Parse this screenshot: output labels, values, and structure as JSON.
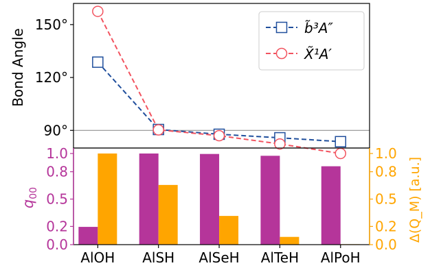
{
  "colors": {
    "series_b3A": "#1f4e9c",
    "series_X1A": "#f2535f",
    "q00_bar": "#b5359a",
    "delta_bar": "#ffa500",
    "axis": "#000000",
    "refline": "#808080"
  },
  "chart_data": [
    {
      "type": "line",
      "ylabel": "Bond Angle",
      "ylim": [
        80,
        162
      ],
      "yticks": [
        90,
        120,
        150
      ],
      "ytick_labels": [
        "90°",
        "120°",
        "150°"
      ],
      "reference_line": 90,
      "categories": [
        "AlOH",
        "AlSH",
        "AlSeH",
        "AlTeH",
        "AlPoH"
      ],
      "series": [
        {
          "name": "b̃³A″",
          "marker": "square",
          "style": "dashed",
          "values": [
            128.7,
            90.5,
            87.8,
            85.8,
            83.6
          ]
        },
        {
          "name": "X̃¹A′",
          "marker": "circle",
          "style": "dashed",
          "values": [
            157.5,
            90.3,
            87.0,
            82.3,
            76.9
          ]
        }
      ],
      "legend_position": "top-right"
    },
    {
      "type": "bar",
      "categories": [
        "AlOH",
        "AlSH",
        "AlSeH",
        "AlTeH",
        "AlPoH"
      ],
      "ylabel_left": "q00",
      "ylabel_right": "Δ(Q_M) [a.u.]",
      "ylim_left": [
        0,
        1.0
      ],
      "ylim_right": [
        0,
        1.0
      ],
      "yticks": [
        0.0,
        0.2,
        0.5,
        0.8,
        1.0
      ],
      "ytick_labels": [
        "0.0",
        "0.2",
        "0.5",
        "0.8",
        "1.0"
      ],
      "series": [
        {
          "name": "q00",
          "axis": "left",
          "values": [
            0.195,
            1.0,
            0.995,
            0.975,
            0.86
          ]
        },
        {
          "name": "Δ(Q_M)",
          "axis": "right",
          "values": [
            1.0,
            0.655,
            0.315,
            0.085,
            0.005
          ]
        }
      ]
    }
  ]
}
